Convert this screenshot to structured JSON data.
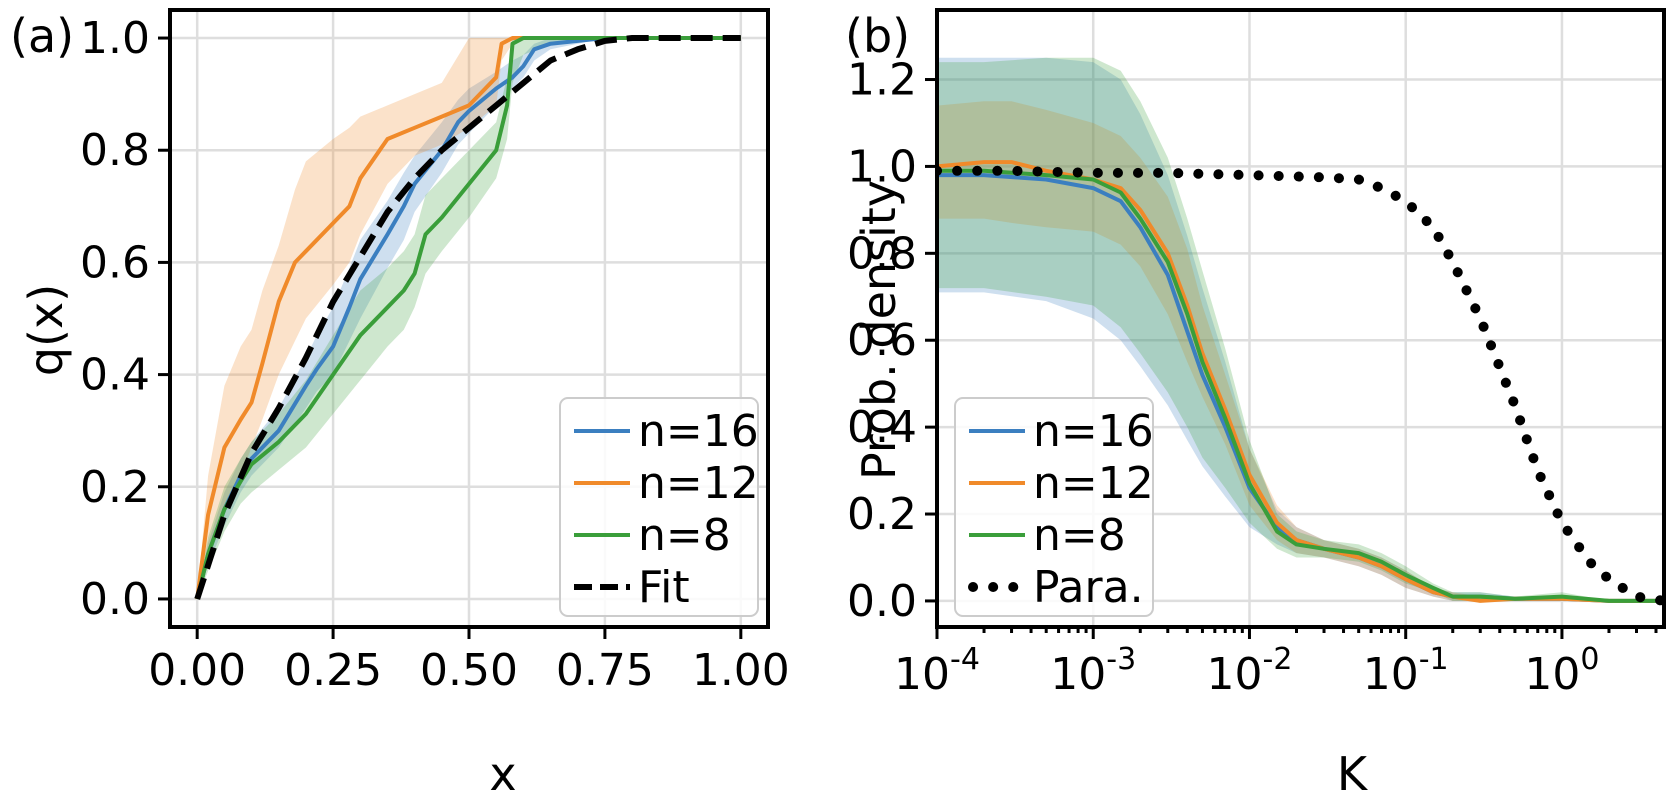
{
  "chart_data": [
    {
      "panel_label": "(a)",
      "type": "line",
      "xlabel": "x",
      "ylabel": "q(x)",
      "xlim": [
        -0.05,
        1.05
      ],
      "ylim": [
        -0.05,
        1.05
      ],
      "xticks": [
        0.0,
        0.25,
        0.5,
        0.75,
        1.0
      ],
      "xtick_labels": [
        "0.00",
        "0.25",
        "0.50",
        "0.75",
        "1.00"
      ],
      "yticks": [
        0.0,
        0.2,
        0.4,
        0.6,
        0.8,
        1.0
      ],
      "ytick_labels": [
        "0.0",
        "0.2",
        "0.4",
        "0.6",
        "0.8",
        "1.0"
      ],
      "grid": true,
      "legend_position": "bottom-right",
      "series": [
        {
          "name": "n=16",
          "color": "#3b7fc0",
          "x": [
            0,
            0.02,
            0.05,
            0.08,
            0.1,
            0.15,
            0.2,
            0.22,
            0.25,
            0.28,
            0.3,
            0.35,
            0.38,
            0.4,
            0.45,
            0.48,
            0.5,
            0.55,
            0.58,
            0.6,
            0.62,
            0.65,
            0.7,
            0.75,
            0.8,
            0.9,
            1.0
          ],
          "y": [
            0,
            0.08,
            0.16,
            0.22,
            0.25,
            0.3,
            0.38,
            0.41,
            0.45,
            0.52,
            0.57,
            0.65,
            0.7,
            0.74,
            0.8,
            0.85,
            0.87,
            0.91,
            0.93,
            0.95,
            0.98,
            0.99,
            0.995,
            1.0,
            1.0,
            1.0,
            1.0
          ],
          "band_lower": [
            0,
            0.06,
            0.13,
            0.19,
            0.22,
            0.27,
            0.34,
            0.37,
            0.4,
            0.46,
            0.5,
            0.59,
            0.64,
            0.69,
            0.76,
            0.81,
            0.83,
            0.88,
            0.91,
            0.93,
            0.96,
            0.98,
            0.99,
            1.0,
            1.0,
            1.0,
            1.0
          ],
          "band_upper": [
            0,
            0.1,
            0.19,
            0.25,
            0.28,
            0.34,
            0.43,
            0.47,
            0.52,
            0.59,
            0.64,
            0.71,
            0.76,
            0.79,
            0.85,
            0.89,
            0.91,
            0.94,
            0.96,
            0.97,
            0.99,
            1.0,
            1.0,
            1.0,
            1.0,
            1.0,
            1.0
          ]
        },
        {
          "name": "n=12",
          "color": "#f08a2a",
          "x": [
            0,
            0.02,
            0.05,
            0.08,
            0.1,
            0.12,
            0.15,
            0.18,
            0.2,
            0.25,
            0.28,
            0.3,
            0.35,
            0.4,
            0.45,
            0.5,
            0.55,
            0.56,
            0.58,
            0.6,
            0.65,
            0.7,
            0.75,
            0.8,
            0.9,
            1.0
          ],
          "y": [
            0,
            0.15,
            0.27,
            0.32,
            0.35,
            0.42,
            0.53,
            0.6,
            0.62,
            0.67,
            0.7,
            0.75,
            0.82,
            0.84,
            0.86,
            0.88,
            0.93,
            0.99,
            1.0,
            1.0,
            1.0,
            1.0,
            1.0,
            1.0,
            1.0,
            1.0
          ],
          "band_lower": [
            0,
            0.08,
            0.16,
            0.22,
            0.27,
            0.32,
            0.4,
            0.46,
            0.5,
            0.56,
            0.6,
            0.65,
            0.74,
            0.79,
            0.81,
            0.84,
            0.88,
            0.96,
            0.99,
            1.0,
            1.0,
            1.0,
            1.0,
            1.0,
            1.0,
            1.0
          ],
          "band_upper": [
            0,
            0.22,
            0.38,
            0.45,
            0.48,
            0.55,
            0.63,
            0.73,
            0.78,
            0.82,
            0.84,
            0.86,
            0.88,
            0.9,
            0.92,
            1.0,
            1.0,
            1.0,
            1.0,
            1.0,
            1.0,
            1.0,
            1.0,
            1.0,
            1.0,
            1.0
          ]
        },
        {
          "name": "n=8",
          "color": "#3a9e3a",
          "x": [
            0,
            0.02,
            0.05,
            0.08,
            0.1,
            0.15,
            0.2,
            0.25,
            0.3,
            0.35,
            0.38,
            0.4,
            0.42,
            0.45,
            0.5,
            0.55,
            0.57,
            0.58,
            0.6,
            0.65,
            0.7,
            0.75,
            0.8,
            0.9,
            1.0
          ],
          "y": [
            0,
            0.08,
            0.16,
            0.21,
            0.24,
            0.28,
            0.33,
            0.4,
            0.47,
            0.52,
            0.55,
            0.58,
            0.65,
            0.68,
            0.74,
            0.8,
            0.88,
            0.99,
            1.0,
            1.0,
            1.0,
            1.0,
            1.0,
            1.0,
            1.0
          ],
          "band_lower": [
            0,
            0.05,
            0.12,
            0.17,
            0.19,
            0.23,
            0.27,
            0.33,
            0.39,
            0.45,
            0.48,
            0.52,
            0.58,
            0.62,
            0.68,
            0.75,
            0.82,
            0.92,
            0.97,
            0.99,
            1.0,
            1.0,
            1.0,
            1.0,
            1.0
          ],
          "band_upper": [
            0,
            0.11,
            0.2,
            0.25,
            0.28,
            0.33,
            0.39,
            0.47,
            0.55,
            0.59,
            0.62,
            0.65,
            0.72,
            0.75,
            0.8,
            0.85,
            0.93,
            1.0,
            1.0,
            1.0,
            1.0,
            1.0,
            1.0,
            1.0,
            1.0
          ]
        },
        {
          "name": "Fit",
          "color": "#000000",
          "style": "dashed",
          "x": [
            0,
            0.05,
            0.1,
            0.15,
            0.2,
            0.25,
            0.3,
            0.35,
            0.4,
            0.45,
            0.5,
            0.55,
            0.6,
            0.65,
            0.7,
            0.75,
            0.8,
            0.9,
            1.0
          ],
          "y": [
            0,
            0.15,
            0.26,
            0.34,
            0.43,
            0.53,
            0.61,
            0.69,
            0.75,
            0.8,
            0.84,
            0.88,
            0.92,
            0.96,
            0.98,
            0.995,
            1.0,
            1.0,
            1.0
          ]
        }
      ]
    },
    {
      "panel_label": "(b)",
      "type": "line",
      "xscale": "log",
      "xlabel": "K",
      "ylabel": "Prob. density",
      "xlim": [
        0.0001,
        4.5
      ],
      "ylim": [
        -0.06,
        1.36
      ],
      "xticks": [
        0.0001,
        0.001,
        0.01,
        0.1,
        1
      ],
      "xtick_labels": [
        {
          "base": "10",
          "exp": "-4"
        },
        {
          "base": "10",
          "exp": "-3"
        },
        {
          "base": "10",
          "exp": "-2"
        },
        {
          "base": "10",
          "exp": "-1"
        },
        {
          "base": "10",
          "exp": "0"
        }
      ],
      "yticks": [
        0.0,
        0.2,
        0.4,
        0.6,
        0.8,
        1.0,
        1.2
      ],
      "ytick_labels": [
        "0.0",
        "0.2",
        "0.4",
        "0.6",
        "0.8",
        "1.0",
        "1.2"
      ],
      "grid": true,
      "legend_position": "bottom-left",
      "series": [
        {
          "name": "n=16",
          "color": "#3b7fc0",
          "x": [
            0.0001,
            0.0002,
            0.0005,
            0.001,
            0.0015,
            0.002,
            0.003,
            0.004,
            0.005,
            0.007,
            0.01,
            0.015,
            0.02,
            0.03,
            0.05,
            0.07,
            0.1,
            0.15,
            0.2,
            0.3,
            0.5,
            1,
            2,
            4.5
          ],
          "y": [
            0.98,
            0.98,
            0.97,
            0.95,
            0.92,
            0.86,
            0.75,
            0.62,
            0.52,
            0.4,
            0.26,
            0.17,
            0.14,
            0.12,
            0.1,
            0.08,
            0.05,
            0.02,
            0.01,
            0.01,
            0.005,
            0.005,
            0.0,
            0.0
          ],
          "band_lower": [
            0.71,
            0.71,
            0.69,
            0.65,
            0.6,
            0.54,
            0.45,
            0.37,
            0.31,
            0.24,
            0.17,
            0.13,
            0.11,
            0.1,
            0.08,
            0.06,
            0.03,
            0.01,
            0.0,
            0.0,
            0.0,
            0.0,
            0.0,
            0.0
          ],
          "band_upper": [
            1.25,
            1.25,
            1.25,
            1.24,
            1.2,
            1.12,
            0.98,
            0.84,
            0.72,
            0.55,
            0.35,
            0.21,
            0.17,
            0.14,
            0.12,
            0.1,
            0.07,
            0.03,
            0.02,
            0.02,
            0.01,
            0.01,
            0.0,
            0.0
          ]
        },
        {
          "name": "n=12",
          "color": "#f08a2a",
          "x": [
            0.0001,
            0.0002,
            0.0003,
            0.0005,
            0.001,
            0.0015,
            0.002,
            0.003,
            0.004,
            0.005,
            0.007,
            0.01,
            0.015,
            0.02,
            0.03,
            0.05,
            0.07,
            0.1,
            0.15,
            0.2,
            0.3,
            0.5,
            1,
            2,
            4.5
          ],
          "y": [
            1.0,
            1.01,
            1.01,
            0.99,
            0.97,
            0.95,
            0.9,
            0.8,
            0.68,
            0.57,
            0.44,
            0.29,
            0.18,
            0.14,
            0.12,
            0.1,
            0.08,
            0.05,
            0.02,
            0.01,
            0.0,
            0.005,
            0.005,
            0.0,
            0.0
          ],
          "band_lower": [
            0.88,
            0.88,
            0.87,
            0.86,
            0.85,
            0.82,
            0.77,
            0.66,
            0.55,
            0.47,
            0.36,
            0.22,
            0.14,
            0.11,
            0.1,
            0.08,
            0.06,
            0.03,
            0.01,
            0.0,
            0.0,
            0.0,
            0.0,
            0.0,
            0.0
          ],
          "band_upper": [
            1.14,
            1.15,
            1.15,
            1.13,
            1.1,
            1.07,
            1.02,
            0.93,
            0.81,
            0.68,
            0.52,
            0.35,
            0.22,
            0.17,
            0.14,
            0.12,
            0.1,
            0.07,
            0.03,
            0.02,
            0.01,
            0.01,
            0.01,
            0.0,
            0.0
          ]
        },
        {
          "name": "n=8",
          "color": "#3a9e3a",
          "x": [
            0.0001,
            0.0002,
            0.0005,
            0.001,
            0.0015,
            0.002,
            0.003,
            0.004,
            0.005,
            0.007,
            0.01,
            0.015,
            0.02,
            0.03,
            0.05,
            0.07,
            0.1,
            0.15,
            0.2,
            0.3,
            0.5,
            1,
            2,
            4.5
          ],
          "y": [
            0.99,
            0.99,
            0.98,
            0.97,
            0.94,
            0.88,
            0.78,
            0.66,
            0.55,
            0.42,
            0.27,
            0.16,
            0.13,
            0.12,
            0.11,
            0.09,
            0.06,
            0.03,
            0.01,
            0.01,
            0.005,
            0.01,
            0.0,
            0.0
          ],
          "band_lower": [
            0.72,
            0.72,
            0.7,
            0.68,
            0.63,
            0.57,
            0.48,
            0.4,
            0.33,
            0.26,
            0.18,
            0.12,
            0.1,
            0.1,
            0.09,
            0.07,
            0.04,
            0.02,
            0.0,
            0.0,
            0.0,
            0.0,
            0.0,
            0.0
          ],
          "band_upper": [
            1.24,
            1.24,
            1.25,
            1.25,
            1.22,
            1.15,
            1.02,
            0.88,
            0.76,
            0.58,
            0.37,
            0.2,
            0.16,
            0.14,
            0.13,
            0.11,
            0.08,
            0.04,
            0.02,
            0.02,
            0.01,
            0.02,
            0.0,
            0.0
          ]
        },
        {
          "name": "Para.",
          "color": "#000000",
          "style": "dotted",
          "x": [
            0.0001,
            0.0003,
            0.001,
            0.003,
            0.01,
            0.03,
            0.05,
            0.07,
            0.1,
            0.15,
            0.2,
            0.3,
            0.5,
            0.7,
            1.0,
            1.5,
            2.0,
            3.0,
            4.5
          ],
          "y": [
            0.99,
            0.99,
            0.985,
            0.985,
            0.98,
            0.975,
            0.97,
            0.95,
            0.92,
            0.86,
            0.78,
            0.65,
            0.45,
            0.3,
            0.18,
            0.09,
            0.05,
            0.01,
            0.0
          ]
        }
      ]
    }
  ]
}
